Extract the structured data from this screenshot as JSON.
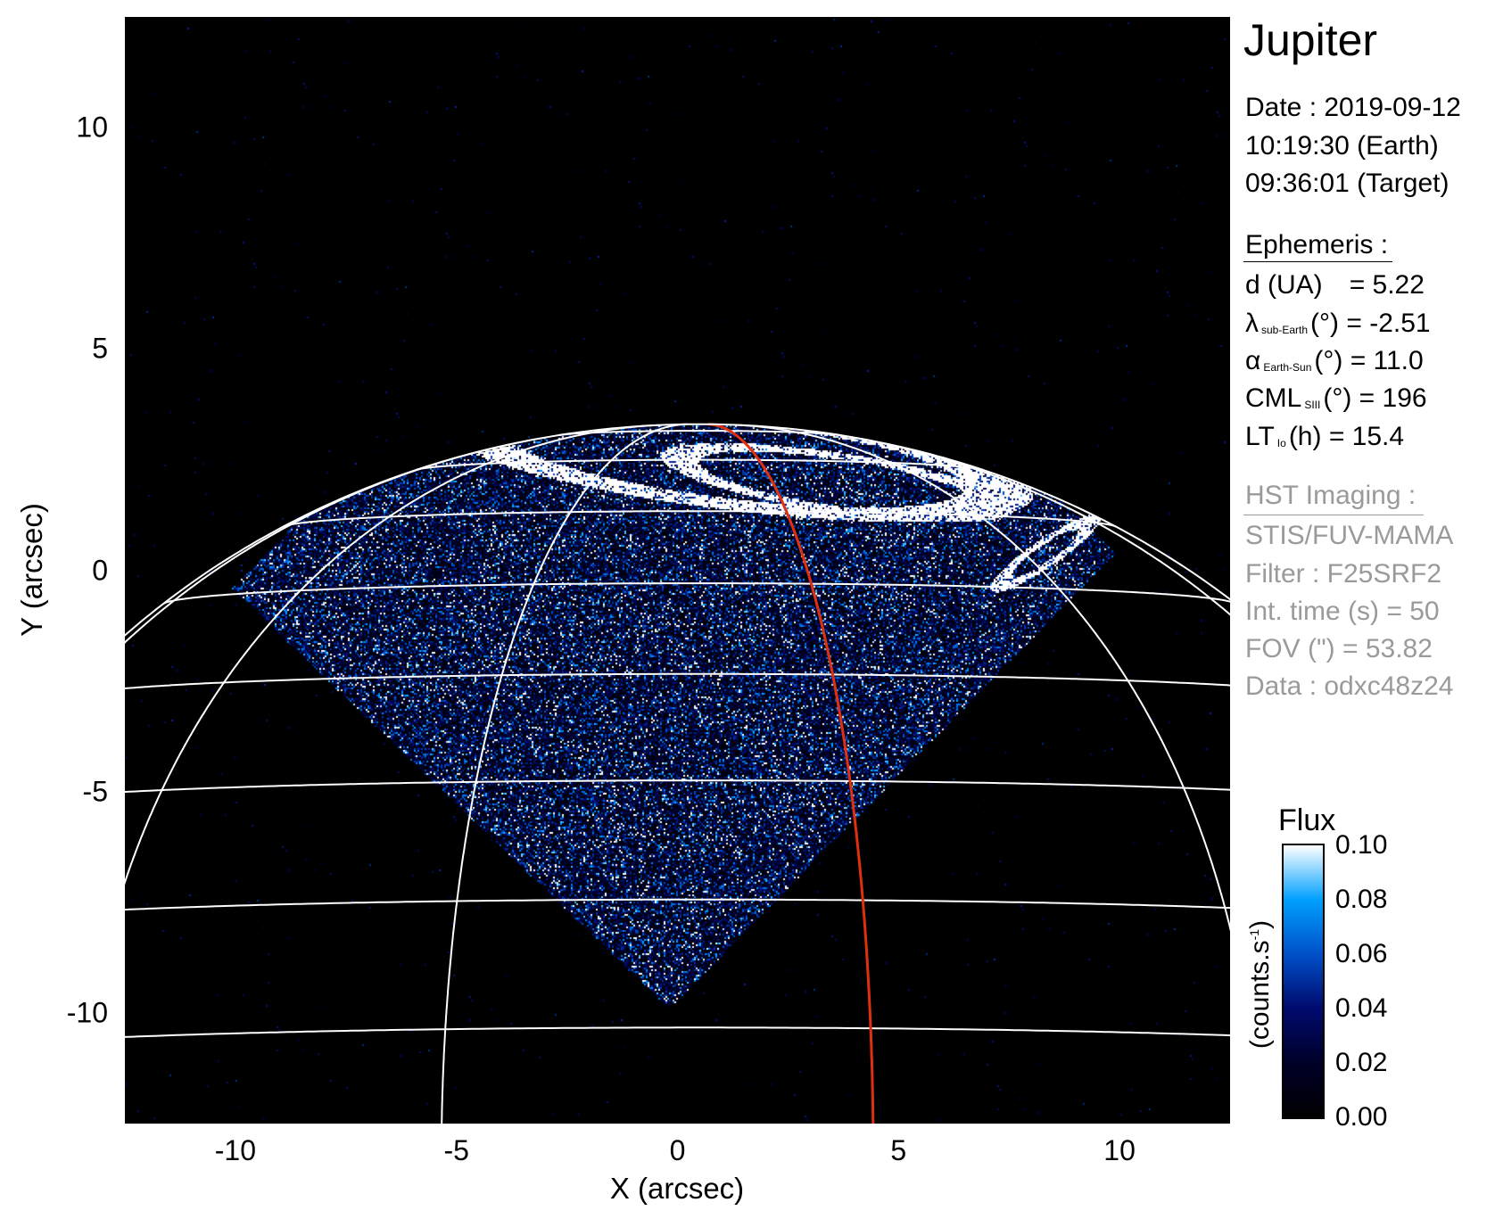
{
  "chart_data": {
    "type": "image",
    "xlabel": "X (arcsec)",
    "ylabel": "Y (arcsec)",
    "xlim": [
      -12.5,
      12.5
    ],
    "ylim": [
      -12.5,
      12.5
    ],
    "xticks": [
      "-10",
      "-5",
      "0",
      "5",
      "10"
    ],
    "xtick_values": [
      -10,
      -5,
      0,
      5,
      10
    ],
    "yticks": [
      "10",
      "5",
      "0",
      "-5",
      "-10"
    ],
    "ytick_values": [
      10,
      5,
      0,
      -5,
      -10
    ],
    "grid": "planetographic latitude/longitude overlay",
    "grid_color": "#ffffff",
    "highlight_meridian_color": "#e03010",
    "colorbar": {
      "title": "Flux",
      "unit_label": "(counts.s",
      "unit_sup": "-1",
      "unit_close": ")",
      "range": [
        0.0,
        0.1
      ],
      "ticks": [
        "0.10",
        "0.08",
        "0.06",
        "0.04",
        "0.02",
        "0.00"
      ],
      "tick_values": [
        0.1,
        0.08,
        0.06,
        0.04,
        0.02,
        0.0
      ],
      "colormap": [
        "#000000",
        "#000028",
        "#000a6e",
        "#0050c8",
        "#00a0ff",
        "#ffffff"
      ],
      "placement": "right"
    }
  },
  "info": {
    "title": "Jupiter",
    "date": "Date : 2019-09-12",
    "time_earth": "10:19:30 (Earth)",
    "time_target": "09:36:01 (Target)",
    "ephemeris_header": "Ephemeris :",
    "d": {
      "label": "d (UA)",
      "value": "= 5.22"
    },
    "lambda": {
      "symbol": "λ",
      "sub": "sub-Earth",
      "rest": "(°) = -2.51"
    },
    "alpha": {
      "symbol": "α",
      "sub": "Earth-Sun",
      "rest": "(°) = 11.0"
    },
    "cml": {
      "symbol": "CML",
      "sub": "SIII",
      "rest": "(°) = 196"
    },
    "lt": {
      "symbol": "LT",
      "sub": "Io",
      "rest": "(h) = 15.4"
    },
    "hst_header": "HST Imaging :",
    "instrument": "STIS/FUV-MAMA",
    "filter": "Filter : F25SRF2",
    "int_time": "Int. time (s) = 50",
    "fov": "FOV (\") = 53.82",
    "data": "Data : odxc48z24"
  }
}
